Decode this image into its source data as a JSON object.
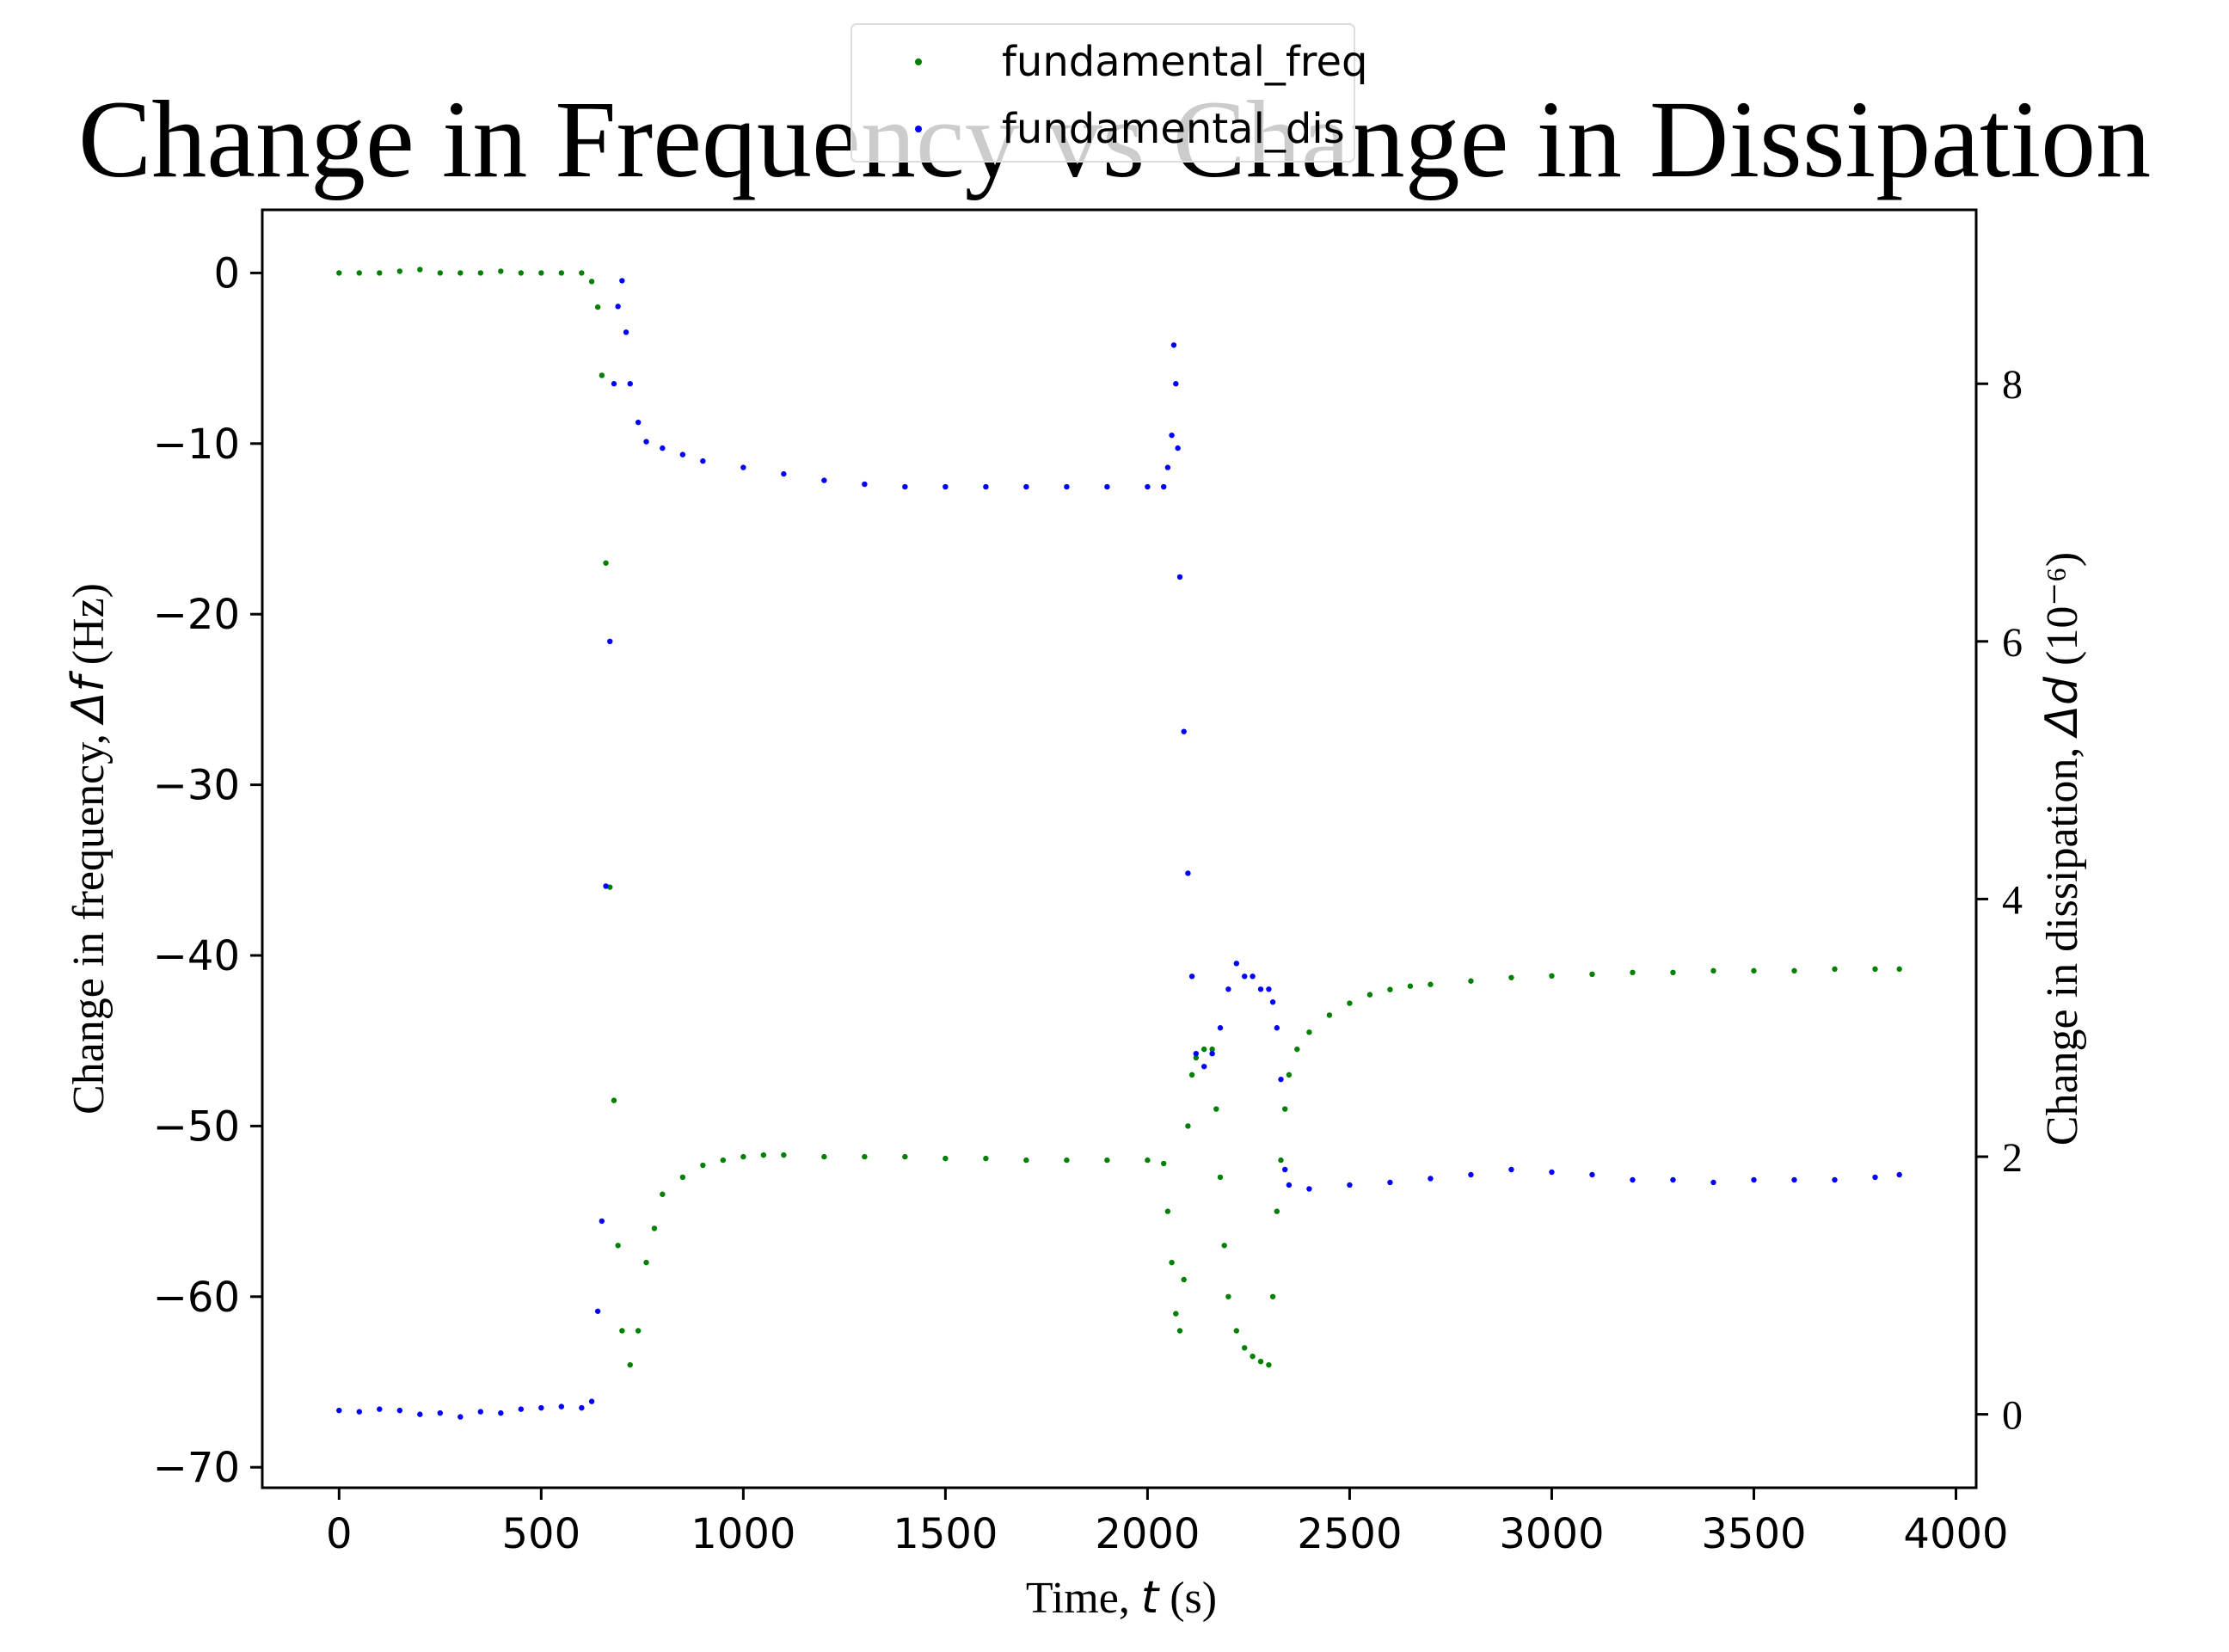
{
  "chart_data": {
    "type": "scatter",
    "title": "Change in Frequency vs Change in Dissipation",
    "xlabel": {
      "prefix": "Time, ",
      "symbol": "t",
      "suffix": " (s)"
    },
    "ylabel_left": {
      "prefix": "Change in frequency, ",
      "symbol": "Δf",
      "suffix": " (Hz)"
    },
    "ylabel_right": {
      "prefix": "Change in dissipation, ",
      "symbol": "Δd",
      "suffix": " (10⁻⁶)"
    },
    "xlim": [
      -190,
      4050
    ],
    "ylim_left": [
      -71.2,
      3.7
    ],
    "ylim_right": [
      -0.57,
      9.35
    ],
    "xticks": [
      0,
      500,
      1000,
      1500,
      2000,
      2500,
      3000,
      3500,
      4000
    ],
    "xtick_labels": [
      "0",
      "500",
      "1000",
      "1500",
      "2000",
      "2500",
      "3000",
      "3500",
      "4000"
    ],
    "yticks_left": [
      0,
      -10,
      -20,
      -30,
      -40,
      -50,
      -60,
      -70
    ],
    "ytick_labels_left": [
      "0",
      "−10",
      "−20",
      "−30",
      "−40",
      "−50",
      "−60",
      "−70"
    ],
    "yticks_right": [
      0,
      2,
      4,
      6,
      8
    ],
    "ytick_labels_right": [
      "0",
      "2",
      "4",
      "6",
      "8"
    ],
    "grid": false,
    "legend_position": "top-center",
    "series": [
      {
        "name": "fundamental_freq",
        "axis": "left",
        "color": "#008000",
        "x": [
          0,
          50,
          100,
          150,
          200,
          250,
          300,
          350,
          400,
          450,
          500,
          550,
          600,
          625,
          640,
          650,
          660,
          670,
          680,
          690,
          700,
          720,
          740,
          760,
          780,
          800,
          850,
          900,
          950,
          1000,
          1050,
          1100,
          1200,
          1300,
          1400,
          1500,
          1600,
          1700,
          1800,
          1900,
          2000,
          2040,
          2050,
          2060,
          2070,
          2080,
          2090,
          2100,
          2110,
          2120,
          2140,
          2160,
          2170,
          2180,
          2190,
          2200,
          2220,
          2240,
          2260,
          2280,
          2300,
          2310,
          2320,
          2330,
          2340,
          2350,
          2370,
          2400,
          2450,
          2500,
          2550,
          2600,
          2650,
          2700,
          2800,
          2900,
          3000,
          3100,
          3200,
          3300,
          3400,
          3500,
          3600,
          3700,
          3800,
          3860
        ],
        "y": [
          0,
          0,
          0,
          0.1,
          0.2,
          0,
          0,
          0,
          0.1,
          0,
          0,
          0,
          0,
          -0.5,
          -2,
          -6,
          -17,
          -36,
          -48.5,
          -57,
          -62,
          -64,
          -62,
          -58,
          -56,
          -54,
          -53,
          -52.3,
          -52,
          -51.8,
          -51.7,
          -51.7,
          -51.8,
          -51.8,
          -51.8,
          -51.9,
          -51.9,
          -52,
          -52,
          -52,
          -52,
          -52.2,
          -55,
          -58,
          -61,
          -62,
          -59,
          -50,
          -47,
          -46,
          -45.5,
          -45.5,
          -49,
          -53,
          -57,
          -60,
          -62,
          -63,
          -63.5,
          -63.8,
          -64,
          -60,
          -55,
          -52,
          -49,
          -47,
          -45.5,
          -44.5,
          -43.5,
          -42.8,
          -42.3,
          -42,
          -41.8,
          -41.7,
          -41.5,
          -41.3,
          -41.2,
          -41.1,
          -41,
          -41,
          -40.9,
          -40.9,
          -40.9,
          -40.8,
          -40.8,
          -40.8
        ]
      },
      {
        "name": "fundamental_dis",
        "axis": "right",
        "color": "#0000ff",
        "x": [
          0,
          50,
          100,
          150,
          200,
          250,
          300,
          350,
          400,
          450,
          500,
          550,
          600,
          625,
          640,
          650,
          660,
          670,
          680,
          690,
          700,
          710,
          720,
          740,
          760,
          800,
          850,
          900,
          1000,
          1100,
          1200,
          1300,
          1400,
          1500,
          1600,
          1700,
          1800,
          1900,
          2000,
          2040,
          2050,
          2060,
          2065,
          2070,
          2075,
          2080,
          2090,
          2100,
          2110,
          2120,
          2140,
          2160,
          2180,
          2200,
          2220,
          2240,
          2260,
          2280,
          2300,
          2310,
          2320,
          2330,
          2340,
          2350,
          2400,
          2500,
          2600,
          2700,
          2800,
          2900,
          3000,
          3100,
          3200,
          3300,
          3400,
          3500,
          3600,
          3700,
          3800,
          3860
        ],
        "y": [
          0.03,
          0.02,
          0.04,
          0.03,
          0.0,
          0.01,
          -0.02,
          0.02,
          0.01,
          0.04,
          0.05,
          0.06,
          0.05,
          0.1,
          0.8,
          1.5,
          4.1,
          6.0,
          8.0,
          8.6,
          8.8,
          8.4,
          8.0,
          7.7,
          7.55,
          7.5,
          7.45,
          7.4,
          7.35,
          7.3,
          7.25,
          7.22,
          7.2,
          7.2,
          7.2,
          7.2,
          7.2,
          7.2,
          7.2,
          7.2,
          7.35,
          7.6,
          8.3,
          8.0,
          7.5,
          6.5,
          5.3,
          4.2,
          3.4,
          2.8,
          2.7,
          2.8,
          3.0,
          3.3,
          3.5,
          3.4,
          3.4,
          3.3,
          3.3,
          3.2,
          3.0,
          2.6,
          1.9,
          1.78,
          1.75,
          1.78,
          1.8,
          1.83,
          1.86,
          1.9,
          1.88,
          1.86,
          1.82,
          1.82,
          1.8,
          1.82,
          1.82,
          1.82,
          1.84,
          1.86
        ]
      }
    ]
  }
}
